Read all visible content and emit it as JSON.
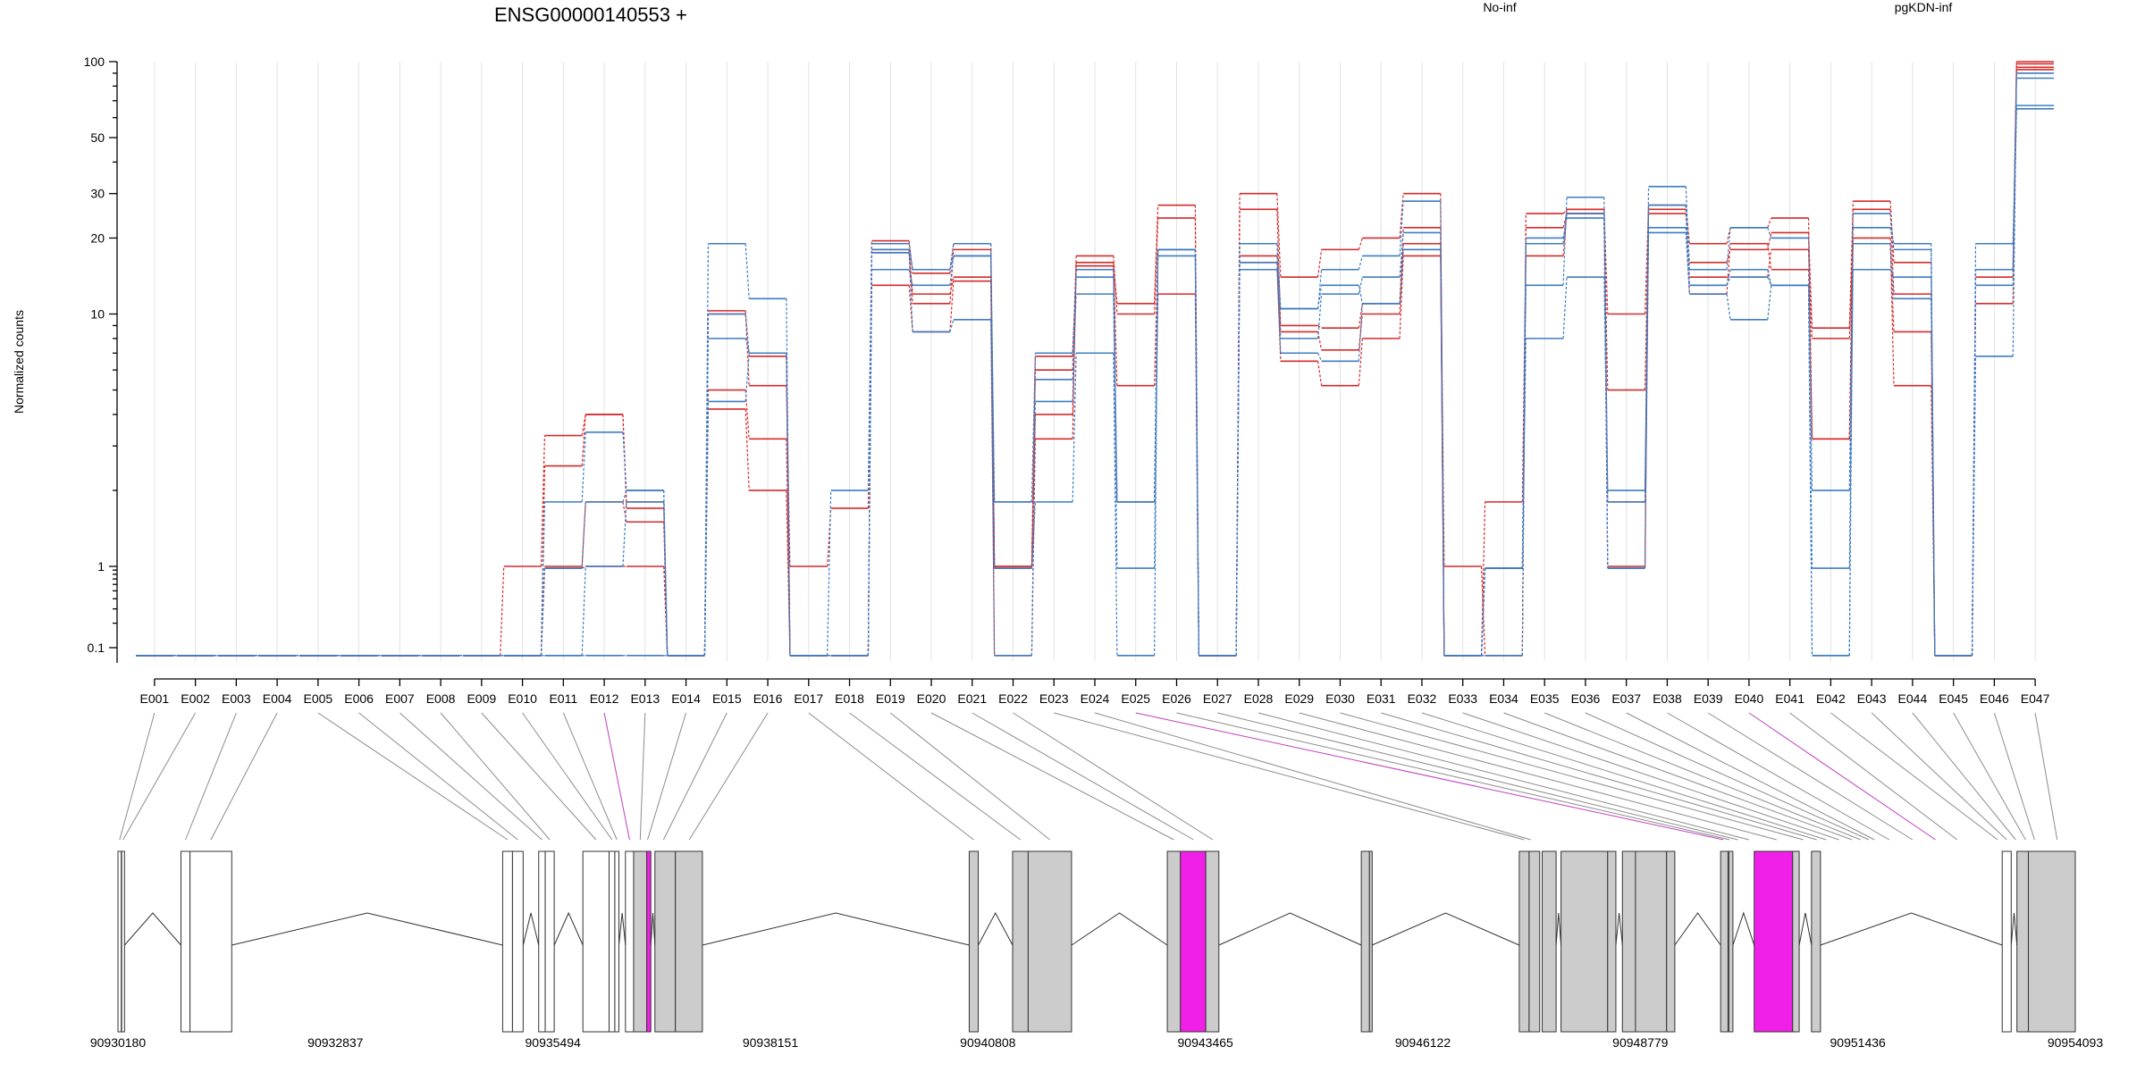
{
  "chart_data": {
    "type": "line",
    "title": "ENSG00000140553 +",
    "ylabel": "Normalized counts",
    "y_scale": "log",
    "ylim": [
      0.075,
      100
    ],
    "yticks": [
      0.1,
      1,
      10,
      20,
      30,
      50,
      100
    ],
    "ytick_labels": [
      "0.1",
      "1",
      "10",
      "20",
      "30",
      "50",
      "100"
    ],
    "legend_placement": "top",
    "categories": [
      "E001",
      "E002",
      "E003",
      "E004",
      "E005",
      "E006",
      "E007",
      "E008",
      "E009",
      "E010",
      "E011",
      "E012",
      "E013",
      "E014",
      "E015",
      "E016",
      "E017",
      "E018",
      "E019",
      "E020",
      "E021",
      "E022",
      "E023",
      "E024",
      "E025",
      "E026",
      "E027",
      "E028",
      "E029",
      "E030",
      "E031",
      "E032",
      "E033",
      "E034",
      "E035",
      "E036",
      "E037",
      "E038",
      "E039",
      "E040",
      "E041",
      "E042",
      "E043",
      "E044",
      "E045",
      "E046",
      "E047"
    ],
    "groups": [
      {
        "name": "No-inf",
        "color": "#d42a2a"
      },
      {
        "name": "pgKDN-inf",
        "color": "#3d7cc0"
      }
    ],
    "series": [
      {
        "group": "No-inf",
        "values": [
          0.08,
          0.08,
          0.08,
          0.08,
          0.08,
          0.08,
          0.08,
          0.08,
          0.08,
          1,
          3.3,
          4,
          1.7,
          0.08,
          10.3,
          5.2,
          1,
          1.7,
          19.5,
          14.5,
          19,
          1,
          6.8,
          15.5,
          11,
          27,
          0.08,
          30,
          14,
          18,
          20,
          30,
          0.08,
          0.08,
          25,
          26,
          10,
          27,
          19,
          22,
          24,
          3.2,
          28,
          16,
          0.08,
          15,
          100
        ]
      },
      {
        "group": "No-inf",
        "values": [
          0.08,
          0.08,
          0.08,
          0.08,
          0.08,
          0.08,
          0.08,
          0.08,
          0.08,
          0.08,
          2.5,
          4,
          1.8,
          0.08,
          10,
          6.8,
          0.08,
          0.08,
          17.5,
          12,
          14,
          1,
          6,
          17,
          10,
          24,
          0.08,
          26,
          9,
          8.8,
          11,
          22,
          1,
          0.08,
          22,
          25,
          5,
          25,
          16,
          18,
          21,
          8.8,
          26,
          12,
          0.08,
          14,
          98
        ]
      },
      {
        "group": "No-inf",
        "values": [
          0.08,
          0.08,
          0.08,
          0.08,
          0.08,
          0.08,
          0.08,
          0.08,
          0.08,
          0.08,
          1,
          1.8,
          1.5,
          0.08,
          5,
          3.2,
          0.08,
          0.08,
          13,
          8.5,
          13.5,
          0.08,
          3.2,
          16,
          5.2,
          18,
          0.08,
          17,
          8.5,
          7.2,
          10,
          19,
          0.08,
          1.8,
          19,
          26,
          1,
          27,
          14,
          14,
          18,
          8,
          19,
          8.5,
          0.08,
          11,
          95
        ]
      },
      {
        "group": "No-inf",
        "values": [
          0.08,
          0.08,
          0.08,
          0.08,
          0.08,
          0.08,
          0.08,
          0.08,
          0.08,
          0.08,
          0.95,
          1,
          1,
          0.08,
          4.2,
          2,
          0.08,
          0.08,
          18,
          11,
          18,
          0.95,
          4,
          15,
          1.8,
          12,
          0.08,
          16,
          6.5,
          5.2,
          8,
          17,
          0.08,
          0.95,
          17,
          25,
          1.8,
          26,
          12,
          19,
          15,
          3.2,
          20,
          5.2,
          0.08,
          15,
          93
        ]
      },
      {
        "group": "pgKDN-inf",
        "values": [
          0.08,
          0.08,
          0.08,
          0.08,
          0.08,
          0.08,
          0.08,
          0.08,
          0.08,
          0.08,
          1.8,
          3.4,
          2,
          0.08,
          19,
          11.5,
          0.08,
          2,
          19,
          15,
          19,
          1.8,
          7,
          14,
          1.8,
          18,
          0.08,
          19,
          10.5,
          15,
          17,
          28,
          0.08,
          0.95,
          13,
          29,
          2,
          32,
          15,
          22,
          20,
          2,
          22,
          19,
          0.08,
          19,
          67
        ]
      },
      {
        "group": "pgKDN-inf",
        "values": [
          0.08,
          0.08,
          0.08,
          0.08,
          0.08,
          0.08,
          0.08,
          0.08,
          0.08,
          0.08,
          0.95,
          1.8,
          2,
          0.08,
          8,
          7,
          0.08,
          0.08,
          15,
          13,
          17,
          1.8,
          5.5,
          12,
          0.95,
          17,
          0.08,
          19,
          8,
          12,
          14,
          21,
          0.08,
          0.95,
          8,
          14,
          1.8,
          22,
          13,
          15,
          13,
          0.95,
          15,
          14,
          0.08,
          13,
          65
        ]
      },
      {
        "group": "pgKDN-inf",
        "values": [
          0.08,
          0.08,
          0.08,
          0.08,
          0.08,
          0.08,
          0.08,
          0.08,
          0.08,
          0.08,
          0.08,
          1,
          1.8,
          0.08,
          4.5,
          7,
          0.08,
          0.08,
          17.5,
          8.5,
          9.5,
          0.08,
          4.5,
          15,
          1.8,
          18,
          0.08,
          15,
          7,
          6.5,
          11,
          18,
          0.08,
          0.08,
          19,
          25,
          0.95,
          21,
          12,
          9.5,
          13,
          0.08,
          19,
          11.5,
          0.08,
          6.8,
          86
        ]
      },
      {
        "group": "pgKDN-inf",
        "values": [
          0.08,
          0.08,
          0.08,
          0.08,
          0.08,
          0.08,
          0.08,
          0.08,
          0.08,
          0.08,
          0.08,
          0.08,
          0.08,
          0.08,
          10,
          7,
          0.08,
          0.08,
          18,
          15,
          17,
          0.95,
          1.8,
          7,
          0.08,
          18,
          0.08,
          16,
          10.5,
          13,
          11,
          18,
          0.08,
          0.95,
          20,
          24,
          0.95,
          27,
          13,
          14,
          13,
          0.08,
          25,
          18,
          0.08,
          15,
          90
        ]
      }
    ],
    "gene_coordinate_labels": [
      "90930180",
      "90932837",
      "90935494",
      "90938151",
      "90940808",
      "90943465",
      "90946122",
      "90948779",
      "90951436",
      "90954093"
    ],
    "gene_range": [
      90930180,
      90954093
    ],
    "highlighted_exons": [
      "E012",
      "E025",
      "E040"
    ],
    "highlight_color": "#f020e8",
    "exon_fill_color": "#cccccc"
  }
}
